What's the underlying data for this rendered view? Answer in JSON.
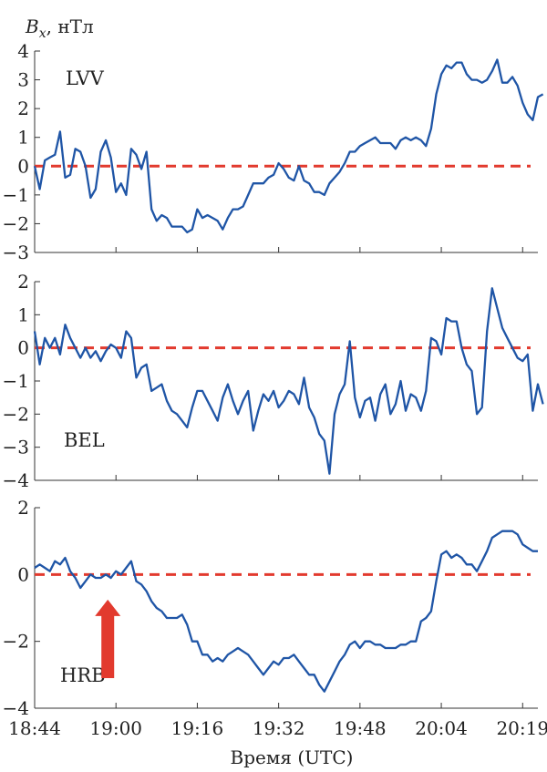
{
  "chart_data": {
    "type": "line",
    "ylabel_symbol": "B",
    "ylabel_subscript": "x",
    "ylabel_unit": ", нТл",
    "xlabel": "Время (UTC)",
    "x_ticks": [
      {
        "t": 0,
        "label": "18:44"
      },
      {
        "t": 16,
        "label": "19:00"
      },
      {
        "t": 32,
        "label": "19:16"
      },
      {
        "t": 48,
        "label": "19:32"
      },
      {
        "t": 64,
        "label": "19:48"
      },
      {
        "t": 80,
        "label": "20:04"
      },
      {
        "t": 96,
        "label": "20:19"
      }
    ],
    "xlim": [
      0,
      99
    ],
    "colors": {
      "series": "#1f55a6",
      "reference": "#e23a2e",
      "arrow": "#e23a2e",
      "axes": "#333333"
    },
    "panels": [
      {
        "station": "LVV",
        "ylim": [
          -3,
          4
        ],
        "yticks": [
          4,
          3,
          2,
          1,
          0,
          -1,
          -2,
          -3
        ],
        "ytick_labels": [
          "4",
          "3",
          "2",
          "1",
          "0",
          "−1",
          "−2",
          "−3"
        ],
        "values": [
          0.0,
          -0.8,
          0.2,
          0.3,
          0.4,
          1.2,
          -0.4,
          -0.3,
          0.6,
          0.5,
          0.0,
          -1.1,
          -0.8,
          0.5,
          0.9,
          0.3,
          -0.9,
          -0.6,
          -1.0,
          0.6,
          0.4,
          -0.1,
          0.5,
          -1.5,
          -1.9,
          -1.7,
          -1.8,
          -2.1,
          -2.1,
          -2.1,
          -2.3,
          -2.2,
          -1.5,
          -1.8,
          -1.7,
          -1.8,
          -1.9,
          -2.2,
          -1.8,
          -1.5,
          -1.5,
          -1.4,
          -1.0,
          -0.6,
          -0.6,
          -0.6,
          -0.4,
          -0.3,
          0.1,
          -0.1,
          -0.4,
          -0.5,
          0.0,
          -0.5,
          -0.6,
          -0.9,
          -0.9,
          -1.0,
          -0.6,
          -0.4,
          -0.2,
          0.1,
          0.5,
          0.5,
          0.7,
          0.8,
          0.9,
          1.0,
          0.8,
          0.8,
          0.8,
          0.6,
          0.9,
          1.0,
          0.9,
          1.0,
          0.9,
          0.7,
          1.3,
          2.5,
          3.2,
          3.5,
          3.4,
          3.6,
          3.6,
          3.2,
          3.0,
          3.0,
          2.9,
          3.0,
          3.3,
          3.7,
          2.9,
          2.9,
          3.1,
          2.8,
          2.2,
          1.8,
          1.6,
          2.4,
          2.5
        ]
      },
      {
        "station": "BEL",
        "ylim": [
          -4,
          2
        ],
        "yticks": [
          2,
          1,
          0,
          -1,
          -2,
          -3,
          -4
        ],
        "ytick_labels": [
          "2",
          "1",
          "0",
          "−1",
          "−2",
          "−3",
          "−4"
        ],
        "values": [
          0.5,
          -0.5,
          0.3,
          0.0,
          0.3,
          -0.2,
          0.7,
          0.3,
          0.0,
          -0.3,
          0.0,
          -0.3,
          -0.1,
          -0.4,
          -0.1,
          0.1,
          0.0,
          -0.3,
          0.5,
          0.3,
          -0.9,
          -0.6,
          -0.5,
          -1.3,
          -1.2,
          -1.1,
          -1.6,
          -1.9,
          -2.0,
          -2.2,
          -2.4,
          -1.8,
          -1.3,
          -1.3,
          -1.6,
          -1.9,
          -2.2,
          -1.5,
          -1.1,
          -1.6,
          -2.0,
          -1.6,
          -1.3,
          -2.5,
          -1.9,
          -1.4,
          -1.6,
          -1.3,
          -1.8,
          -1.6,
          -1.3,
          -1.4,
          -1.7,
          -0.9,
          -1.8,
          -2.1,
          -2.6,
          -2.8,
          -3.8,
          -2.0,
          -1.4,
          -1.1,
          0.2,
          -1.5,
          -2.1,
          -1.6,
          -1.5,
          -2.2,
          -1.4,
          -1.1,
          -2.0,
          -1.7,
          -1.0,
          -1.9,
          -1.4,
          -1.5,
          -1.9,
          -1.3,
          0.3,
          0.2,
          -0.2,
          0.9,
          0.8,
          0.8,
          0.0,
          -0.5,
          -0.7,
          -2.0,
          -1.8,
          0.5,
          1.8,
          1.2,
          0.6,
          0.3,
          0.0,
          -0.3,
          -0.4,
          -0.2,
          -1.9,
          -1.1,
          -1.7
        ]
      },
      {
        "station": "HRB",
        "ylim": [
          -4,
          2
        ],
        "yticks": [
          2,
          0,
          -2,
          -4
        ],
        "ytick_labels": [
          "2",
          "0",
          "−2",
          "−4"
        ],
        "values": [
          0.2,
          0.3,
          0.2,
          0.1,
          0.4,
          0.3,
          0.5,
          0.1,
          -0.1,
          -0.4,
          -0.2,
          0.0,
          -0.1,
          -0.1,
          0.0,
          -0.1,
          0.1,
          0.0,
          0.2,
          0.4,
          -0.2,
          -0.3,
          -0.5,
          -0.8,
          -1.0,
          -1.1,
          -1.3,
          -1.3,
          -1.3,
          -1.2,
          -1.5,
          -2.0,
          -2.0,
          -2.4,
          -2.4,
          -2.6,
          -2.5,
          -2.6,
          -2.4,
          -2.3,
          -2.2,
          -2.3,
          -2.4,
          -2.6,
          -2.8,
          -3.0,
          -2.8,
          -2.6,
          -2.7,
          -2.5,
          -2.5,
          -2.4,
          -2.6,
          -2.8,
          -3.0,
          -3.0,
          -3.3,
          -3.5,
          -3.2,
          -2.9,
          -2.6,
          -2.4,
          -2.1,
          -2.0,
          -2.2,
          -2.0,
          -2.0,
          -2.1,
          -2.1,
          -2.2,
          -2.2,
          -2.2,
          -2.1,
          -2.1,
          -2.0,
          -2.0,
          -1.4,
          -1.3,
          -1.1,
          -0.2,
          0.6,
          0.7,
          0.5,
          0.6,
          0.5,
          0.3,
          0.3,
          0.1,
          0.4,
          0.7,
          1.1,
          1.2,
          1.3,
          1.3,
          1.3,
          1.2,
          0.9,
          0.8,
          0.7,
          0.7
        ]
      }
    ],
    "annotation": {
      "type": "arrow",
      "direction": "up",
      "at_t": 16,
      "panel": "HRB"
    }
  }
}
